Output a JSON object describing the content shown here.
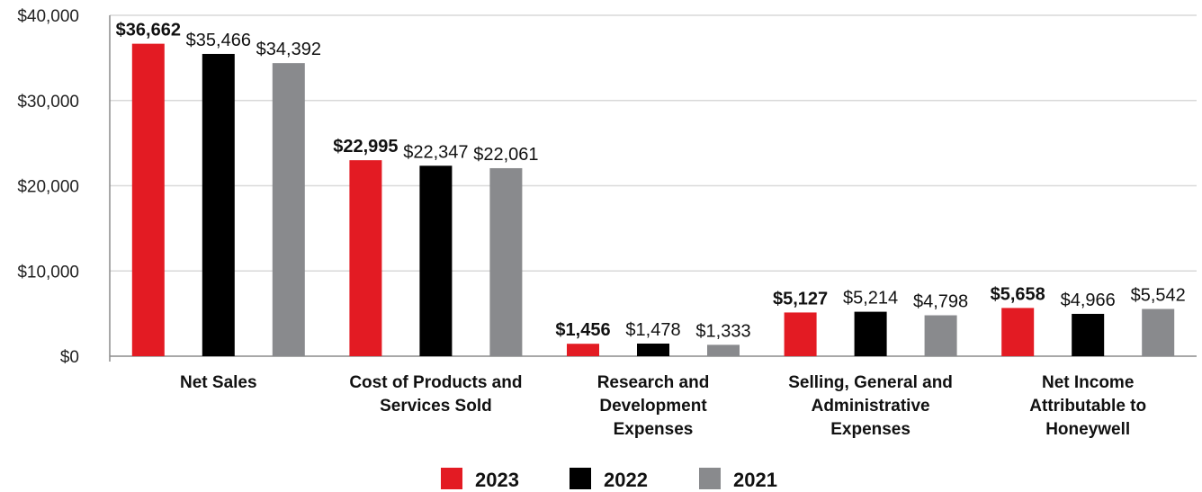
{
  "chart_data": {
    "type": "bar",
    "categories": [
      [
        "Net Sales"
      ],
      [
        "Cost of Products and",
        "Services Sold"
      ],
      [
        "Research and",
        "Development",
        "Expenses"
      ],
      [
        "Selling, General and",
        "Administrative",
        "Expenses"
      ],
      [
        "Net Income",
        "Attributable to",
        "Honeywell"
      ]
    ],
    "series": [
      {
        "name": "2023",
        "color": "#e31b23",
        "bold_labels": true,
        "values": [
          36662,
          22995,
          1456,
          5127,
          5658
        ],
        "labels": [
          "$36,662",
          "$22,995",
          "$1,456",
          "$5,127",
          "$5,658"
        ]
      },
      {
        "name": "2022",
        "color": "#000000",
        "bold_labels": false,
        "values": [
          35466,
          22347,
          1478,
          5214,
          4966
        ],
        "labels": [
          "$35,466",
          "$22,347",
          "$1,478",
          "$5,214",
          "$4,966"
        ]
      },
      {
        "name": "2021",
        "color": "#898a8d",
        "bold_labels": false,
        "values": [
          34392,
          22061,
          1333,
          4798,
          5542
        ],
        "labels": [
          "$34,392",
          "$22,061",
          "$1,333",
          "$4,798",
          "$5,542"
        ]
      }
    ],
    "yticks": [
      {
        "value": 0,
        "label": "$0"
      },
      {
        "value": 10000,
        "label": "$10,000"
      },
      {
        "value": 20000,
        "label": "$20,000"
      },
      {
        "value": 30000,
        "label": "$30,000"
      },
      {
        "value": 40000,
        "label": "$40,000"
      }
    ],
    "ylim": [
      0,
      40000
    ],
    "grid": true,
    "legend": "bottom-center"
  }
}
